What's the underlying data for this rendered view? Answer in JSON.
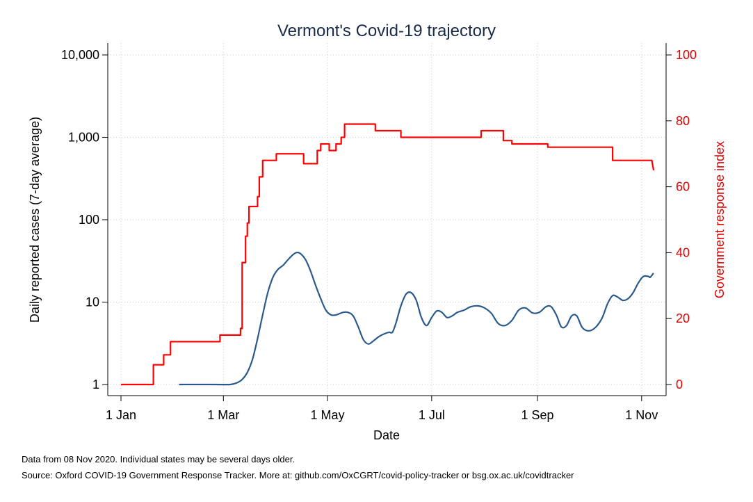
{
  "chart_data": {
    "type": "line",
    "title": "Vermont's Covid-19 trajectory",
    "xlabel": "Date",
    "ylabel_left": "Daily reported cases (7-day average)",
    "ylabel_right": "Government response index",
    "left_axis": {
      "scale": "log",
      "ylim": [
        1,
        10000
      ],
      "ticks": [
        1,
        10,
        100,
        1000,
        10000
      ],
      "tick_labels": [
        "1",
        "10",
        "100",
        "1,000",
        "10,000"
      ]
    },
    "right_axis": {
      "scale": "linear",
      "ylim": [
        0,
        100
      ],
      "ticks": [
        0,
        20,
        40,
        60,
        80,
        100
      ],
      "tick_labels": [
        "0",
        "20",
        "40",
        "60",
        "80",
        "100"
      ]
    },
    "x_ticks": [
      "2020-01-01",
      "2020-03-01",
      "2020-05-01",
      "2020-07-01",
      "2020-09-01",
      "2020-11-01"
    ],
    "x_tick_labels": [
      "1 Jan",
      "1 Mar",
      "1 May",
      "1 Jul",
      "1 Sep",
      "1 Nov"
    ],
    "x_range": [
      "2020-01-01",
      "2020-11-08"
    ],
    "grid": true,
    "series": [
      {
        "axis": "left",
        "color": "#2a5a8c",
        "points": [
          [
            "2020-02-04",
            1
          ],
          [
            "2020-02-15",
            1
          ],
          [
            "2020-02-25",
            1
          ],
          [
            "2020-03-05",
            1
          ],
          [
            "2020-03-09",
            1.05
          ],
          [
            "2020-03-12",
            1.15
          ],
          [
            "2020-03-15",
            1.4
          ],
          [
            "2020-03-18",
            2.0
          ],
          [
            "2020-03-21",
            3.6
          ],
          [
            "2020-03-24",
            7
          ],
          [
            "2020-03-27",
            13
          ],
          [
            "2020-03-30",
            20
          ],
          [
            "2020-04-02",
            25
          ],
          [
            "2020-04-05",
            28
          ],
          [
            "2020-04-08",
            33
          ],
          [
            "2020-04-11",
            38
          ],
          [
            "2020-04-13",
            40
          ],
          [
            "2020-04-15",
            39
          ],
          [
            "2020-04-18",
            33
          ],
          [
            "2020-04-21",
            24
          ],
          [
            "2020-04-24",
            16
          ],
          [
            "2020-04-27",
            11
          ],
          [
            "2020-04-30",
            8
          ],
          [
            "2020-05-03",
            7
          ],
          [
            "2020-05-06",
            7
          ],
          [
            "2020-05-10",
            7.5
          ],
          [
            "2020-05-13",
            7.5
          ],
          [
            "2020-05-16",
            6.8
          ],
          [
            "2020-05-19",
            5
          ],
          [
            "2020-05-22",
            3.5
          ],
          [
            "2020-05-25",
            3.1
          ],
          [
            "2020-05-28",
            3.4
          ],
          [
            "2020-05-31",
            3.8
          ],
          [
            "2020-06-03",
            4.1
          ],
          [
            "2020-06-06",
            4.3
          ],
          [
            "2020-06-08",
            4.3
          ],
          [
            "2020-06-10",
            5.5
          ],
          [
            "2020-06-13",
            9
          ],
          [
            "2020-06-16",
            12.5
          ],
          [
            "2020-06-19",
            13
          ],
          [
            "2020-06-22",
            10.5
          ],
          [
            "2020-06-25",
            6.5
          ],
          [
            "2020-06-28",
            5.2
          ],
          [
            "2020-07-01",
            6.5
          ],
          [
            "2020-07-04",
            7.8
          ],
          [
            "2020-07-07",
            7.5
          ],
          [
            "2020-07-10",
            6.5
          ],
          [
            "2020-07-13",
            6.8
          ],
          [
            "2020-07-16",
            7.5
          ],
          [
            "2020-07-20",
            8
          ],
          [
            "2020-07-24",
            8.8
          ],
          [
            "2020-07-28",
            9
          ],
          [
            "2020-08-01",
            8.5
          ],
          [
            "2020-08-05",
            7.3
          ],
          [
            "2020-08-09",
            5.5
          ],
          [
            "2020-08-13",
            5.2
          ],
          [
            "2020-08-17",
            6
          ],
          [
            "2020-08-21",
            8
          ],
          [
            "2020-08-25",
            8.5
          ],
          [
            "2020-08-29",
            7.4
          ],
          [
            "2020-09-02",
            7.5
          ],
          [
            "2020-09-06",
            8.8
          ],
          [
            "2020-09-09",
            8.8
          ],
          [
            "2020-09-12",
            7
          ],
          [
            "2020-09-15",
            5
          ],
          [
            "2020-09-18",
            5.2
          ],
          [
            "2020-09-21",
            6.8
          ],
          [
            "2020-09-24",
            6.8
          ],
          [
            "2020-09-27",
            5
          ],
          [
            "2020-09-30",
            4.5
          ],
          [
            "2020-10-03",
            4.6
          ],
          [
            "2020-10-06",
            5.2
          ],
          [
            "2020-10-09",
            6.5
          ],
          [
            "2020-10-12",
            9.5
          ],
          [
            "2020-10-15",
            12
          ],
          [
            "2020-10-18",
            11.5
          ],
          [
            "2020-10-21",
            10.5
          ],
          [
            "2020-10-24",
            11
          ],
          [
            "2020-10-27",
            13
          ],
          [
            "2020-10-30",
            17
          ],
          [
            "2020-11-02",
            20.5
          ],
          [
            "2020-11-05",
            20.5
          ],
          [
            "2020-11-06",
            20
          ],
          [
            "2020-11-08",
            22.5
          ]
        ]
      },
      {
        "axis": "right",
        "color": "#ff0000",
        "step": true,
        "points": [
          [
            "2020-01-01",
            0
          ],
          [
            "2020-01-20",
            0
          ],
          [
            "2020-01-20",
            6
          ],
          [
            "2020-01-26",
            6
          ],
          [
            "2020-01-26",
            9
          ],
          [
            "2020-01-30",
            9
          ],
          [
            "2020-01-30",
            13
          ],
          [
            "2020-02-28",
            13
          ],
          [
            "2020-02-28",
            15
          ],
          [
            "2020-03-11",
            15
          ],
          [
            "2020-03-11",
            17
          ],
          [
            "2020-03-12",
            17
          ],
          [
            "2020-03-12",
            37
          ],
          [
            "2020-03-14",
            37
          ],
          [
            "2020-03-14",
            45
          ],
          [
            "2020-03-15",
            45
          ],
          [
            "2020-03-15",
            49
          ],
          [
            "2020-03-16",
            49
          ],
          [
            "2020-03-16",
            54
          ],
          [
            "2020-03-21",
            54
          ],
          [
            "2020-03-21",
            57
          ],
          [
            "2020-03-22",
            57
          ],
          [
            "2020-03-22",
            63
          ],
          [
            "2020-03-24",
            63
          ],
          [
            "2020-03-24",
            68
          ],
          [
            "2020-04-01",
            68
          ],
          [
            "2020-04-01",
            70
          ],
          [
            "2020-04-17",
            70
          ],
          [
            "2020-04-17",
            67
          ],
          [
            "2020-04-25",
            67
          ],
          [
            "2020-04-25",
            71
          ],
          [
            "2020-04-27",
            71
          ],
          [
            "2020-04-27",
            73
          ],
          [
            "2020-05-02",
            73
          ],
          [
            "2020-05-02",
            71
          ],
          [
            "2020-05-06",
            71
          ],
          [
            "2020-05-06",
            73
          ],
          [
            "2020-05-09",
            73
          ],
          [
            "2020-05-09",
            75
          ],
          [
            "2020-05-11",
            75
          ],
          [
            "2020-05-11",
            79
          ],
          [
            "2020-05-29",
            79
          ],
          [
            "2020-05-29",
            77
          ],
          [
            "2020-06-13",
            77
          ],
          [
            "2020-06-13",
            75
          ],
          [
            "2020-07-30",
            75
          ],
          [
            "2020-07-30",
            77
          ],
          [
            "2020-08-12",
            77
          ],
          [
            "2020-08-12",
            74
          ],
          [
            "2020-08-17",
            74
          ],
          [
            "2020-08-17",
            73
          ],
          [
            "2020-09-07",
            73
          ],
          [
            "2020-09-07",
            72
          ],
          [
            "2020-10-15",
            72
          ],
          [
            "2020-10-15",
            68
          ],
          [
            "2020-11-07",
            68
          ],
          [
            "2020-11-08",
            65
          ]
        ]
      }
    ]
  },
  "notes": {
    "line1": "Data from 08 Nov 2020. Individual states may be several days older.",
    "line2": "Source: Oxford COVID-19 Government Response Tracker. More at: github.com/OxCGRT/covid-policy-tracker or bsg.ox.ac.uk/covidtracker"
  }
}
